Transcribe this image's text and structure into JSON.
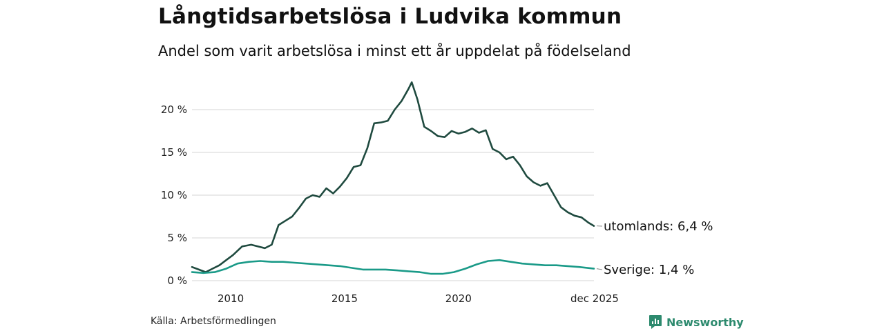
{
  "title": "Långtidsarbetslösa i Ludvika kommun",
  "subtitle": "Andel som varit arbetslösa i minst ett år uppdelat på födelseland",
  "source": "Källa: Arbetsförmedlingen",
  "brand": "Newsworthy",
  "colors": {
    "utomlands": "#1f4a3f",
    "sverige": "#1a9a88",
    "grid": "#dddddd",
    "brand": "#2d8a6e"
  },
  "chart_data": {
    "type": "line",
    "title": "Långtidsarbetslösa i Ludvika kommun",
    "xlabel": "",
    "ylabel": "",
    "xlim": [
      2008.3,
      2025.95
    ],
    "ylim": [
      0,
      23.5
    ],
    "grid": true,
    "legend": "direct labels at right end of lines",
    "yticks": [
      0,
      5,
      10,
      15,
      20
    ],
    "ytick_labels": [
      "0 %",
      "5 %",
      "10 %",
      "15 %",
      "20 %"
    ],
    "xticks": [
      2010,
      2015,
      2020,
      2025.95
    ],
    "xtick_labels": [
      "2010",
      "2015",
      "2020",
      "dec 2025"
    ],
    "series": [
      {
        "name": "utomlands",
        "end_label": "utomlands: 6,4 %",
        "color": "#1f4a3f",
        "x": [
          2008.3,
          2008.6,
          2008.9,
          2009.2,
          2009.5,
          2009.8,
          2010.1,
          2010.5,
          2010.9,
          2011.2,
          2011.5,
          2011.8,
          2012.1,
          2012.4,
          2012.7,
          2013.0,
          2013.3,
          2013.6,
          2013.9,
          2014.2,
          2014.5,
          2014.8,
          2015.1,
          2015.4,
          2015.7,
          2016.0,
          2016.3,
          2016.6,
          2016.9,
          2017.2,
          2017.5,
          2017.8,
          2017.95,
          2018.2,
          2018.5,
          2018.8,
          2019.1,
          2019.4,
          2019.7,
          2020.0,
          2020.3,
          2020.6,
          2020.9,
          2021.2,
          2021.5,
          2021.8,
          2022.1,
          2022.4,
          2022.7,
          2023.0,
          2023.3,
          2023.6,
          2023.9,
          2024.2,
          2024.5,
          2024.8,
          2025.1,
          2025.4,
          2025.7,
          2025.95
        ],
        "values": [
          1.6,
          1.3,
          1.0,
          1.4,
          1.8,
          2.4,
          3.0,
          4.0,
          4.2,
          4.0,
          3.8,
          4.2,
          6.5,
          7.0,
          7.5,
          8.5,
          9.6,
          10.0,
          9.8,
          10.8,
          10.2,
          11.0,
          12.0,
          13.3,
          13.5,
          15.5,
          18.4,
          18.5,
          18.7,
          20.0,
          21.0,
          22.4,
          23.2,
          21.2,
          18.0,
          17.5,
          16.9,
          16.8,
          17.5,
          17.2,
          17.4,
          17.8,
          17.3,
          17.6,
          15.4,
          15.0,
          14.2,
          14.5,
          13.5,
          12.2,
          11.5,
          11.1,
          11.4,
          10.0,
          8.6,
          8.0,
          7.6,
          7.4,
          6.8,
          6.4
        ]
      },
      {
        "name": "Sverige",
        "end_label": "Sverige: 1,4 %",
        "color": "#1a9a88",
        "x": [
          2008.3,
          2008.8,
          2009.3,
          2009.8,
          2010.3,
          2010.8,
          2011.3,
          2011.8,
          2012.3,
          2012.8,
          2013.3,
          2013.8,
          2014.3,
          2014.8,
          2015.3,
          2015.8,
          2016.3,
          2016.8,
          2017.3,
          2017.8,
          2018.3,
          2018.8,
          2019.3,
          2019.8,
          2020.3,
          2020.8,
          2021.3,
          2021.8,
          2022.3,
          2022.8,
          2023.3,
          2023.8,
          2024.3,
          2024.8,
          2025.3,
          2025.95
        ],
        "values": [
          1.0,
          0.9,
          1.0,
          1.4,
          2.0,
          2.2,
          2.3,
          2.2,
          2.2,
          2.1,
          2.0,
          1.9,
          1.8,
          1.7,
          1.5,
          1.3,
          1.3,
          1.3,
          1.2,
          1.1,
          1.0,
          0.8,
          0.8,
          1.0,
          1.4,
          1.9,
          2.3,
          2.4,
          2.2,
          2.0,
          1.9,
          1.8,
          1.8,
          1.7,
          1.6,
          1.4
        ]
      }
    ]
  }
}
